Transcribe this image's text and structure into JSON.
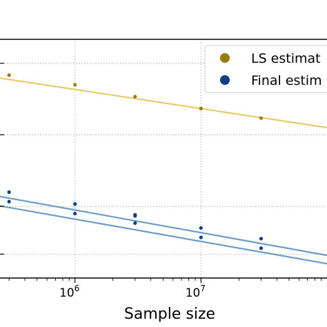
{
  "chart_data": {
    "type": "scatter",
    "xlabel": "Sample size",
    "ylabel": "",
    "x_scale": "log",
    "xlim": [
      100000,
      100000000
    ],
    "ylim": [
      0.0,
      1.0
    ],
    "grid": true,
    "legend_position": "top-right",
    "x_ticks": [
      {
        "value": 1000000,
        "base": "10",
        "exp": "6"
      },
      {
        "value": 10000000,
        "base": "10",
        "exp": "7"
      }
    ],
    "series": [
      {
        "name": "LS estimat",
        "color": "#9a7b0a",
        "fit_color": "#e8c96a",
        "fit_line": [
          [
            100000,
            0.87
          ],
          [
            100000000,
            0.63
          ]
        ],
        "points": [
          [
            300000,
            0.85
          ],
          [
            1000000,
            0.81
          ],
          [
            3000000,
            0.76
          ],
          [
            10000000,
            0.71
          ],
          [
            30000000,
            0.67
          ]
        ]
      },
      {
        "name": "Final estim",
        "color": "#0d3f86",
        "fit_color": "#6c9bc6",
        "fit_line": [
          [
            100000,
            0.38
          ],
          [
            100000000,
            0.095
          ]
        ],
        "points": [
          [
            300000,
            0.36
          ],
          [
            1000000,
            0.31
          ],
          [
            3000000,
            0.265
          ],
          [
            3000000,
            0.26
          ],
          [
            10000000,
            0.21
          ],
          [
            30000000,
            0.165
          ]
        ]
      },
      {
        "name": "",
        "color": "#0d3f86",
        "fit_color": "#6c9bc6",
        "fit_line": [
          [
            100000,
            0.34
          ],
          [
            100000000,
            0.06
          ]
        ],
        "points": [
          [
            300000,
            0.32
          ],
          [
            1000000,
            0.27
          ],
          [
            3000000,
            0.23
          ],
          [
            10000000,
            0.17
          ],
          [
            30000000,
            0.125
          ]
        ]
      }
    ]
  }
}
